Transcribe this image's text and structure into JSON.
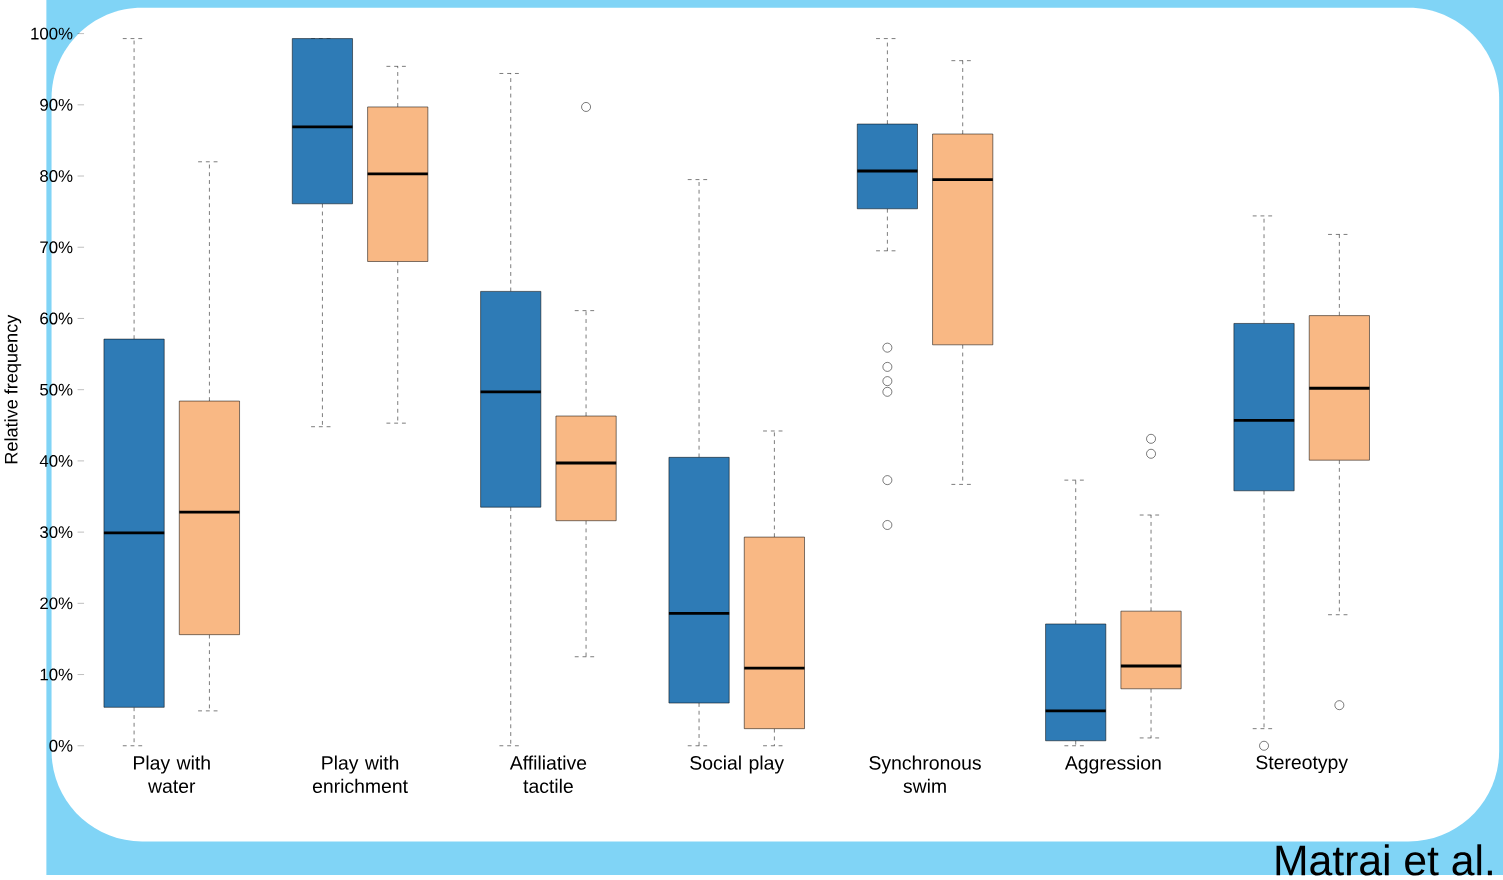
{
  "chart_data": {
    "type": "box",
    "ylabel": "Relative frequency",
    "categories": [
      "Play with water",
      "Play with enrichment",
      "Affiliative tactile",
      "Social play",
      "Synchronous swim",
      "Aggression",
      "Stereotypy"
    ],
    "ylim": [
      0,
      100
    ],
    "yticks": [
      {
        "value": 0,
        "label": "0%"
      },
      {
        "value": 10,
        "label": "10%"
      },
      {
        "value": 20,
        "label": "20%"
      },
      {
        "value": 30,
        "label": "30%"
      },
      {
        "value": 40,
        "label": "40%"
      },
      {
        "value": 50,
        "label": "50%"
      },
      {
        "value": 60,
        "label": "60%"
      },
      {
        "value": 70,
        "label": "70%"
      },
      {
        "value": 80,
        "label": "80%"
      },
      {
        "value": 90,
        "label": "90%"
      },
      {
        "value": 100,
        "label": "100%"
      }
    ],
    "series": [
      {
        "color": "#2e7bb6",
        "boxes": [
          {
            "low": 0,
            "q1": 5.4,
            "median": 29.9,
            "q3": 57.1,
            "high": 99.3
          },
          {
            "low": 44.8,
            "q1": 76.1,
            "median": 86.9,
            "q3": 99.3,
            "high": 99.3
          },
          {
            "low": 0,
            "q1": 33.5,
            "median": 49.7,
            "q3": 63.8,
            "high": 94.4
          },
          {
            "low": 0,
            "q1": 6.0,
            "median": 18.6,
            "q3": 40.5,
            "high": 79.5
          },
          {
            "low": 69.5,
            "q1": 75.4,
            "median": 80.7,
            "q3": 87.3,
            "high": 99.3,
            "outliers": [
              55.9,
              53.2,
              51.2,
              49.7,
              37.3,
              31.0
            ]
          },
          {
            "low": 0,
            "q1": 0.7,
            "median": 4.9,
            "q3": 17.1,
            "high": 37.3
          },
          {
            "low": 2.4,
            "q1": 35.8,
            "median": 45.7,
            "q3": 59.3,
            "high": 74.4,
            "outliers": [
              0
            ]
          }
        ]
      },
      {
        "color": "#f9b884",
        "boxes": [
          {
            "low": 4.9,
            "q1": 15.6,
            "median": 32.8,
            "q3": 48.4,
            "high": 82.0
          },
          {
            "low": 45.3,
            "q1": 68.0,
            "median": 80.3,
            "q3": 89.7,
            "high": 95.4
          },
          {
            "low": 12.5,
            "q1": 31.6,
            "median": 39.7,
            "q3": 46.3,
            "high": 61.1,
            "outliers": [
              89.7
            ]
          },
          {
            "low": 0,
            "q1": 2.4,
            "median": 10.9,
            "q3": 29.3,
            "high": 44.2
          },
          {
            "low": 36.7,
            "q1": 56.3,
            "median": 79.5,
            "q3": 85.9,
            "high": 96.2
          },
          {
            "low": 1.1,
            "q1": 8.0,
            "median": 11.2,
            "q3": 18.9,
            "high": 32.4,
            "outliers": [
              43.1,
              41.0
            ]
          },
          {
            "low": 18.4,
            "q1": 40.1,
            "median": 50.2,
            "q3": 60.4,
            "high": 71.8,
            "outliers": [
              5.7
            ]
          }
        ]
      }
    ],
    "annotations": [
      "Matrai et al."
    ]
  }
}
